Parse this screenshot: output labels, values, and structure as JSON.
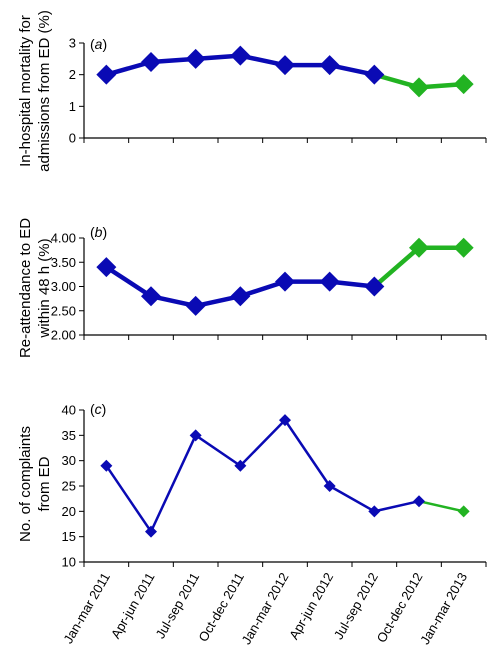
{
  "chart_data": [
    {
      "type": "line",
      "panel_label": "(a)",
      "ylabel_lines": [
        "In-hospital mortality for",
        "admissions from ED (%)"
      ],
      "ylim": [
        0,
        3
      ],
      "yticks": [
        "0",
        "1",
        "2",
        "3"
      ],
      "ytick_values": [
        0,
        1,
        2,
        3
      ],
      "categories": [
        "Jan-mar 2011",
        "Apr-jun 2011",
        "Jul-sep 2011",
        "Oct-dec 2011",
        "Jan-mar 2012",
        "Apr-jun 2012",
        "Jul-sep 2012",
        "Oct-dec 2012",
        "Jan-mar 2013"
      ],
      "values": [
        2.0,
        2.4,
        2.5,
        2.6,
        2.3,
        2.3,
        2.0,
        1.6,
        1.7
      ],
      "segment_colors": [
        "#0a0ab4",
        "#0a0ab4",
        "#0a0ab4",
        "#0a0ab4",
        "#0a0ab4",
        "#0a0ab4",
        "#22b322",
        "#22b322"
      ],
      "point_colors": [
        "#0a0ab4",
        "#0a0ab4",
        "#0a0ab4",
        "#0a0ab4",
        "#0a0ab4",
        "#0a0ab4",
        "#0a0ab4",
        "#22b322",
        "#22b322"
      ],
      "marker_size": "large",
      "grid": false
    },
    {
      "type": "line",
      "panel_label": "(b)",
      "ylabel_lines": [
        "Re-attendance to ED",
        "within 48 h (%)"
      ],
      "ylim": [
        2.0,
        4.0
      ],
      "yticks": [
        "2.00",
        "2.50",
        "3.00",
        "3.50",
        "4.00"
      ],
      "ytick_values": [
        2.0,
        2.5,
        3.0,
        3.5,
        4.0
      ],
      "categories": [
        "Jan-mar 2011",
        "Apr-jun 2011",
        "Jul-sep 2011",
        "Oct-dec 2011",
        "Jan-mar 2012",
        "Apr-jun 2012",
        "Jul-sep 2012",
        "Oct-dec 2012",
        "Jan-mar 2013"
      ],
      "values": [
        3.4,
        2.8,
        2.6,
        2.8,
        3.1,
        3.1,
        3.0,
        3.8,
        3.8
      ],
      "segment_colors": [
        "#0a0ab4",
        "#0a0ab4",
        "#0a0ab4",
        "#0a0ab4",
        "#0a0ab4",
        "#0a0ab4",
        "#22b322",
        "#22b322"
      ],
      "point_colors": [
        "#0a0ab4",
        "#0a0ab4",
        "#0a0ab4",
        "#0a0ab4",
        "#0a0ab4",
        "#0a0ab4",
        "#0a0ab4",
        "#22b322",
        "#22b322"
      ],
      "marker_size": "large",
      "grid": false
    },
    {
      "type": "line",
      "panel_label": "(c)",
      "ylabel_lines": [
        "No. of complaints",
        "from ED"
      ],
      "ylim": [
        10,
        40
      ],
      "yticks": [
        "10",
        "15",
        "20",
        "25",
        "30",
        "35",
        "40"
      ],
      "ytick_values": [
        10,
        15,
        20,
        25,
        30,
        35,
        40
      ],
      "categories": [
        "Jan-mar 2011",
        "Apr-jun 2011",
        "Jul-sep 2011",
        "Oct-dec 2011",
        "Jan-mar 2012",
        "Apr-jun 2012",
        "Jul-sep 2012",
        "Oct-dec 2012",
        "Jan-mar 2013"
      ],
      "values": [
        29,
        16,
        35,
        29,
        38,
        25,
        20,
        22,
        20
      ],
      "segment_colors": [
        "#0a0ab4",
        "#0a0ab4",
        "#0a0ab4",
        "#0a0ab4",
        "#0a0ab4",
        "#0a0ab4",
        "#0a0ab4",
        "#22b322"
      ],
      "point_colors": [
        "#0a0ab4",
        "#0a0ab4",
        "#0a0ab4",
        "#0a0ab4",
        "#0a0ab4",
        "#0a0ab4",
        "#0a0ab4",
        "#0a0ab4",
        "#22b322"
      ],
      "marker_size": "small",
      "grid": false,
      "show_xtick_labels": true
    }
  ]
}
